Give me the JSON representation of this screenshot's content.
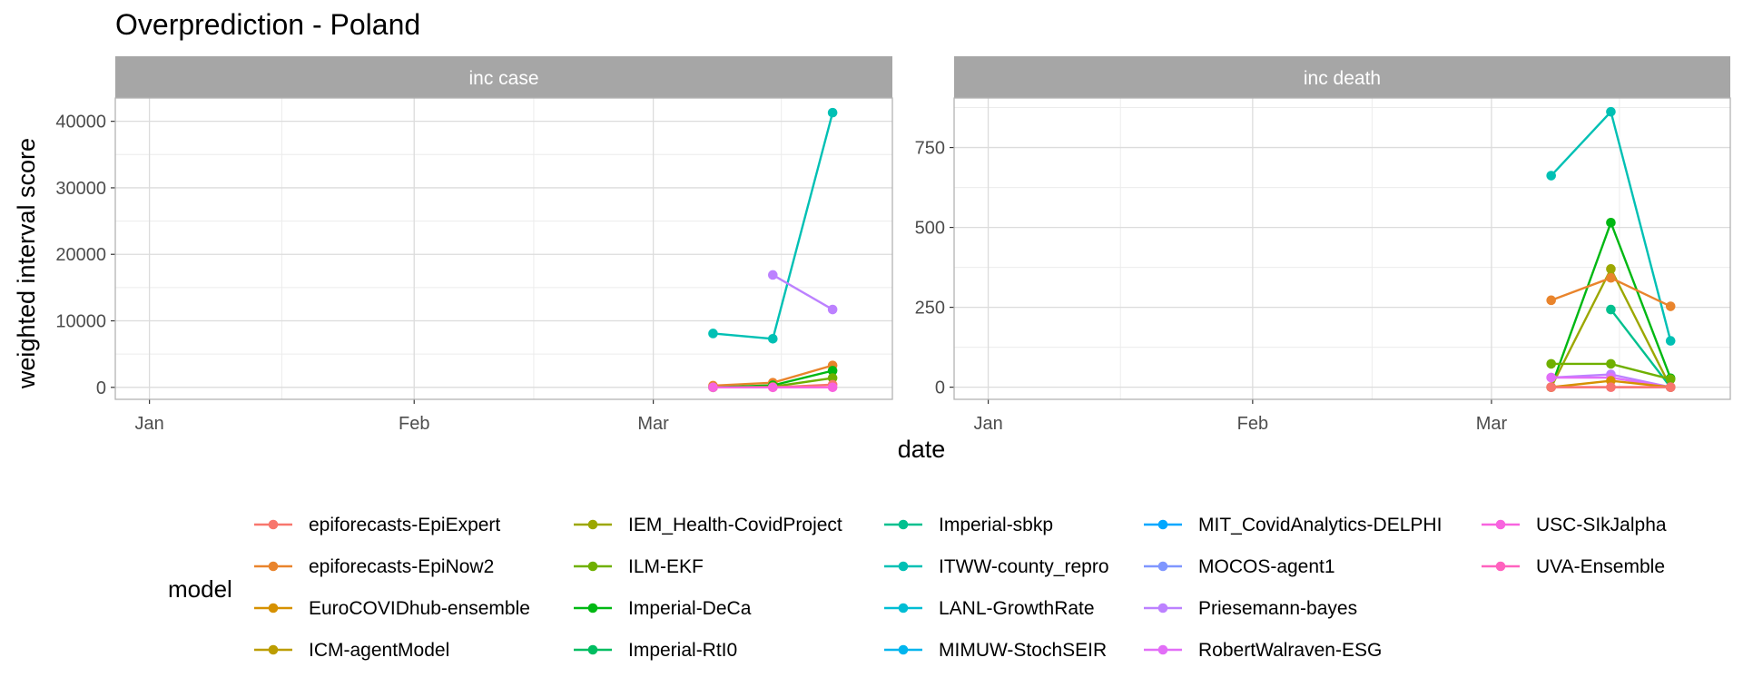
{
  "title": "Overprediction - Poland",
  "xlabel": "date",
  "ylabel": "weighted interval score",
  "legend_title": "model",
  "colors": {
    "strip_bg": "#a6a6a6",
    "panel_border": "#b3b3b3",
    "grid_major": "#dcdcdc",
    "grid_minor": "#ececec"
  },
  "chart_data": [
    {
      "type": "line",
      "facet": "inc case",
      "x_ticks": [
        "Jan",
        "Feb",
        "Mar"
      ],
      "y_ticks": [
        0,
        10000,
        20000,
        30000,
        40000
      ],
      "y_tick_labels": [
        "0",
        "10000",
        "20000",
        "30000",
        "40000"
      ],
      "ylim": [
        -1800,
        43500
      ],
      "x_dates": [
        "2021-03-08",
        "2021-03-15",
        "2021-03-22"
      ],
      "series": [
        {
          "model": "epiforecasts-EpiNow2",
          "values": [
            250,
            700,
            3300
          ]
        },
        {
          "model": "Imperial-DeCa",
          "values": [
            0,
            300,
            2500
          ]
        },
        {
          "model": "ILM-EKF",
          "values": [
            0,
            100,
            1400
          ]
        },
        {
          "model": "epiforecasts-EpiExpert",
          "values": [
            0,
            0,
            400
          ]
        },
        {
          "model": "ITWW-county_repro",
          "values": [
            8100,
            7300,
            41300
          ]
        },
        {
          "model": "Priesemann-bayes",
          "values": [
            null,
            16900,
            11700
          ]
        },
        {
          "model": "USC-SIkJalpha",
          "values": [
            0,
            0,
            0
          ]
        }
      ]
    },
    {
      "type": "line",
      "facet": "inc death",
      "x_ticks": [
        "Jan",
        "Feb",
        "Mar"
      ],
      "y_ticks": [
        0,
        250,
        500,
        750
      ],
      "y_tick_labels": [
        "0",
        "250",
        "500",
        "750"
      ],
      "ylim": [
        -38,
        905
      ],
      "x_dates": [
        "2021-03-08",
        "2021-03-15",
        "2021-03-22"
      ],
      "series": [
        {
          "model": "ITWW-county_repro",
          "values": [
            662,
            862,
            145
          ]
        },
        {
          "model": "Imperial-DeCa",
          "values": [
            0,
            515,
            28
          ]
        },
        {
          "model": "IEM_Health-CovidProject",
          "values": [
            0,
            370,
            0
          ]
        },
        {
          "model": "epiforecasts-EpiNow2",
          "values": [
            272,
            342,
            253
          ]
        },
        {
          "model": "Imperial-sbkp",
          "values": [
            null,
            243,
            0
          ]
        },
        {
          "model": "ILM-EKF",
          "values": [
            73,
            73,
            25
          ]
        },
        {
          "model": "Priesemann-bayes",
          "values": [
            30,
            40,
            0
          ]
        },
        {
          "model": "RobertWalraven-ESG",
          "values": [
            30,
            30,
            0
          ]
        },
        {
          "model": "USC-SIkJalpha",
          "values": [
            0,
            0,
            0
          ]
        },
        {
          "model": "EuroCOVIDhub-ensemble",
          "values": [
            0,
            20,
            0
          ]
        },
        {
          "model": "epiforecasts-EpiExpert",
          "values": [
            0,
            0,
            0
          ]
        }
      ]
    }
  ],
  "legend": [
    {
      "label": "epiforecasts-EpiExpert",
      "color": "#F8766D"
    },
    {
      "label": "epiforecasts-EpiNow2",
      "color": "#E9842C"
    },
    {
      "label": "EuroCOVIDhub-ensemble",
      "color": "#D69100"
    },
    {
      "label": "ICM-agentModel",
      "color": "#BC9D00"
    },
    {
      "label": "IEM_Health-CovidProject",
      "color": "#9CA700"
    },
    {
      "label": "ILM-EKF",
      "color": "#6FB000"
    },
    {
      "label": "Imperial-DeCa",
      "color": "#00B813"
    },
    {
      "label": "Imperial-RtI0",
      "color": "#00BD61"
    },
    {
      "label": "Imperial-sbkp",
      "color": "#00C08E"
    },
    {
      "label": "ITWW-county_repro",
      "color": "#00C0B4"
    },
    {
      "label": "LANL-GrowthRate",
      "color": "#00BDD4"
    },
    {
      "label": "MIMUW-StochSEIR",
      "color": "#00B5EE"
    },
    {
      "label": "MIT_CovidAnalytics-DELPHI",
      "color": "#00A7FF"
    },
    {
      "label": "MOCOS-agent1",
      "color": "#7F96FF"
    },
    {
      "label": "Priesemann-bayes",
      "color": "#BC81FF"
    },
    {
      "label": "RobertWalraven-ESG",
      "color": "#E26EF7"
    },
    {
      "label": "USC-SIkJalpha",
      "color": "#F863DF"
    },
    {
      "label": "UVA-Ensemble",
      "color": "#FF62BF"
    }
  ]
}
